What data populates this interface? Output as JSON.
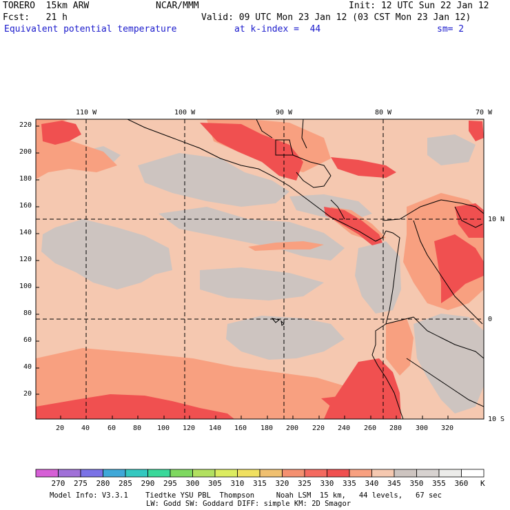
{
  "header": {
    "model": "TORERO  15km ARW",
    "center": "NCAR/MMM",
    "init": "Init: 12 UTC Sun 22 Jan 12",
    "fcst": "Fcst:   21 h",
    "valid": "Valid: 09 UTC Mon 23 Jan 12 (03 CST Mon 23 Jan 12)",
    "field": "Equivalent potential temperature",
    "level": "at k-index =  44",
    "smooth": "sm= 2"
  },
  "map": {
    "lon_labels": [
      "110 W",
      "100 W",
      "90 W",
      "80 W",
      "70 W"
    ],
    "lat_labels": [
      "10 N",
      "0",
      "10 S"
    ],
    "x_ticks": [
      "20",
      "40",
      "60",
      "80",
      "100",
      "120",
      "140",
      "160",
      "180",
      "200",
      "220",
      "240",
      "260",
      "280",
      "300",
      "320"
    ],
    "y_ticks": [
      "220",
      "200",
      "180",
      "160",
      "140",
      "120",
      "100",
      "80",
      "60",
      "40",
      "20"
    ],
    "dominant_field_K": "340-350"
  },
  "colorbar": {
    "unit": "K",
    "levels": [
      "270",
      "275",
      "280",
      "285",
      "290",
      "295",
      "300",
      "305",
      "310",
      "315",
      "320",
      "325",
      "330",
      "335",
      "340",
      "345",
      "350",
      "355",
      "360"
    ],
    "colors": [
      "#d65fd6",
      "#a070d8",
      "#7a72e6",
      "#3fa8d8",
      "#34c8c0",
      "#3ad89a",
      "#7ed860",
      "#b2e060",
      "#dcec60",
      "#f0e060",
      "#f0c070",
      "#f49070",
      "#f46a60",
      "#f05050",
      "#f8a080",
      "#f5c8b0",
      "#cdc4c0",
      "#d7d2d0",
      "#ececea",
      "#ffffff"
    ]
  },
  "footer": {
    "line1": "Model Info: V3.3.1    Tiedtke YSU PBL  Thompson     Noah LSM  15 km,   44 levels,   67 sec",
    "line2": "LW: Godd SW: Goddard DIFF: simple KM: 2D Smagor"
  }
}
